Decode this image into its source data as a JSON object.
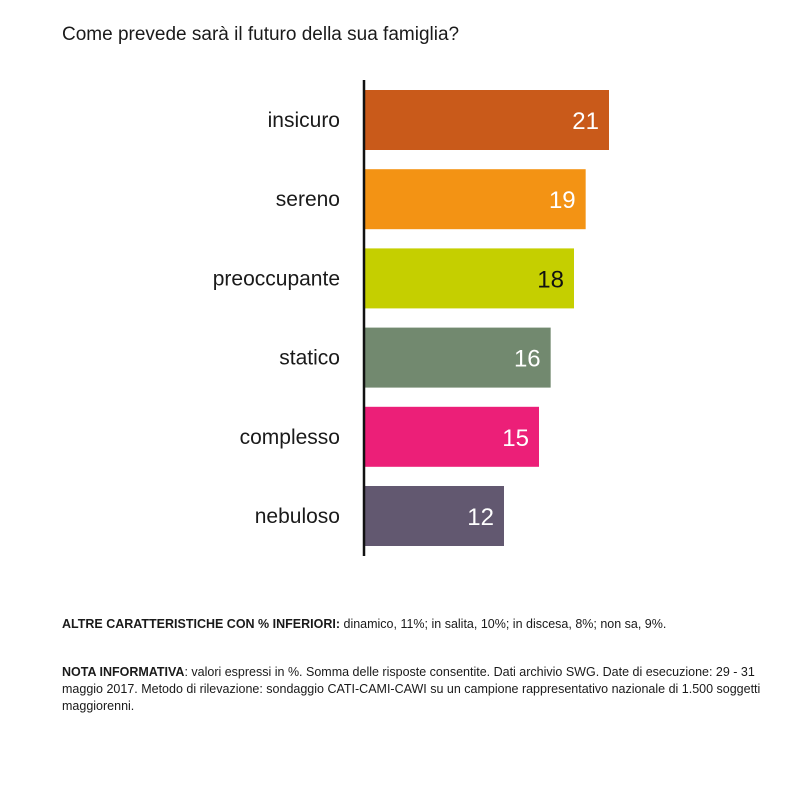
{
  "chart_data": {
    "type": "bar",
    "orientation": "horizontal",
    "title": "Come prevede sarà il futuro della sua famiglia?",
    "categories": [
      "insicuro",
      "sereno",
      "preoccupante",
      "statico",
      "complesso",
      "nebuloso"
    ],
    "values": [
      21,
      19,
      18,
      16,
      15,
      12
    ],
    "colors": [
      "#c95a1a",
      "#f39314",
      "#c5cf00",
      "#72896f",
      "#ec1f78",
      "#625870"
    ],
    "label_colors": [
      "#ffffff",
      "#ffffff",
      "#111111",
      "#ffffff",
      "#ffffff",
      "#ffffff"
    ],
    "xlim": [
      0,
      21.2
    ]
  },
  "notes": {
    "other_heading": "ALTRE CARATTERISTICHE CON % INFERIORI:",
    "other_text": " dinamico, 11%; in salita, 10%; in discesa, 8%; non sa, 9%.",
    "info_heading": "NOTA INFORMATIVA",
    "info_text": ": valori espressi in %. Somma delle risposte consentite. Dati archivio SWG. Date di esecuzione: 29 - 31 maggio 2017. Metodo di rilevazione: sondaggio CATI-CAMI-CAWI su un campione rappresentativo nazionale di 1.500 soggetti maggiorenni."
  }
}
